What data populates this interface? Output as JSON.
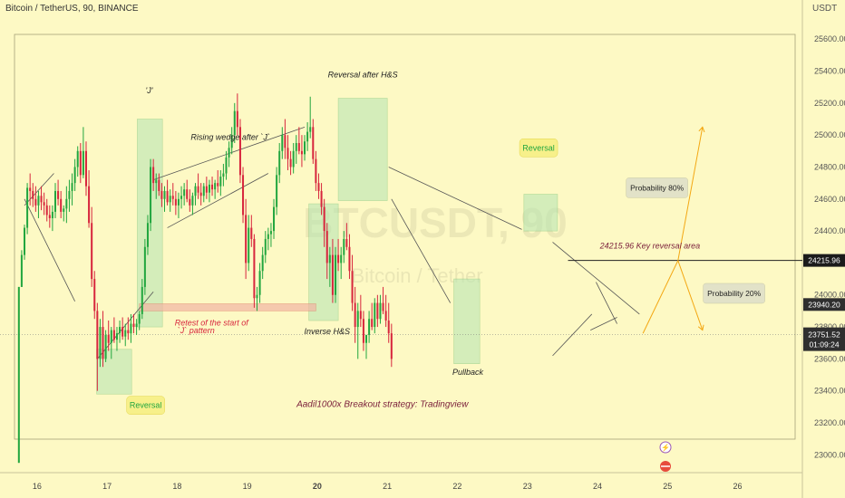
{
  "header": {
    "symbol": "Bitcoin / TetherUS, 90, BINANCE",
    "currency": "USDT"
  },
  "watermark": {
    "ticker": "BTCUSDT, 90",
    "name": "Bitcoin / Tether"
  },
  "colors": {
    "bg": "#fdf9c4",
    "up": "#22a63f",
    "down": "#d7263d",
    "zone": "#b9e6b4",
    "label_box": "#f7f08a",
    "probability_line": "#f3a712",
    "annotation_text": "#7a1e3a"
  },
  "chart_data": {
    "type": "candlestick",
    "title": "",
    "xlabel": "",
    "ylabel": "",
    "x_tick_labels": [
      "16",
      "17",
      "18",
      "19",
      "20",
      "21",
      "22",
      "23",
      "24",
      "25",
      "26"
    ],
    "y_tick_labels": [
      "23000.00",
      "23200.00",
      "23400.00",
      "23600.00",
      "23800.00",
      "24000.00",
      "24200.00",
      "24400.00",
      "24600.00",
      "24800.00",
      "25000.00",
      "25200.00",
      "25400.00",
      "25600.00"
    ],
    "y_ticks": [
      23000,
      23200,
      23400,
      23600,
      23800,
      24000,
      24200,
      24400,
      24600,
      24800,
      25000,
      25200,
      25400,
      25600
    ],
    "ylim": [
      22900,
      25720
    ],
    "xlim": [
      15.6,
      26.9
    ],
    "series": [
      {
        "name": "BTCUSDT",
        "candles": [
          [
            15.74,
            22950,
            24050,
            22950,
            24050
          ],
          [
            15.78,
            24050,
            24280,
            24050,
            24250
          ],
          [
            15.82,
            24250,
            24440,
            24220,
            24420
          ],
          [
            15.86,
            24420,
            24700,
            24380,
            24670
          ],
          [
            15.9,
            24670,
            24760,
            24560,
            24650
          ],
          [
            15.94,
            24650,
            24700,
            24550,
            24600
          ],
          [
            15.98,
            24600,
            24680,
            24520,
            24560
          ],
          [
            16.02,
            24560,
            24650,
            24480,
            24620
          ],
          [
            16.06,
            24620,
            24680,
            24530,
            24580
          ],
          [
            16.1,
            24580,
            24640,
            24500,
            24560
          ],
          [
            16.14,
            24560,
            24600,
            24460,
            24500
          ],
          [
            16.18,
            24500,
            24560,
            24420,
            24480
          ],
          [
            16.22,
            24480,
            24560,
            24400,
            24520
          ],
          [
            16.26,
            24520,
            24700,
            24480,
            24650
          ],
          [
            16.3,
            24650,
            24720,
            24560,
            24600
          ],
          [
            16.34,
            24600,
            24650,
            24480,
            24520
          ],
          [
            16.38,
            24520,
            24560,
            24460,
            24540
          ],
          [
            16.42,
            24540,
            24680,
            24450,
            24600
          ],
          [
            16.46,
            24600,
            24720,
            24520,
            24650
          ],
          [
            16.5,
            24650,
            24760,
            24560,
            24700
          ],
          [
            16.54,
            24700,
            24850,
            24650,
            24800
          ],
          [
            16.58,
            24800,
            24930,
            24740,
            24900
          ],
          [
            16.62,
            24900,
            24950,
            24700,
            24750
          ],
          [
            16.66,
            24750,
            25050,
            24730,
            24900
          ],
          [
            16.7,
            24900,
            24960,
            24620,
            24680
          ],
          [
            16.74,
            24680,
            24780,
            24420,
            24450
          ],
          [
            16.78,
            24450,
            24550,
            24050,
            24100
          ],
          [
            16.82,
            24100,
            24150,
            23850,
            23900
          ],
          [
            16.86,
            23900,
            23950,
            23400,
            23600
          ],
          [
            16.9,
            23600,
            23850,
            23550,
            23800
          ],
          [
            16.94,
            23800,
            23900,
            23550,
            23600
          ],
          [
            16.98,
            23600,
            23780,
            23580,
            23750
          ],
          [
            17.02,
            23750,
            23840,
            23650,
            23700
          ],
          [
            17.06,
            23700,
            23800,
            23600,
            23780
          ],
          [
            17.1,
            23780,
            23860,
            23700,
            23720
          ],
          [
            17.14,
            23720,
            23800,
            23650,
            23760
          ],
          [
            17.18,
            23760,
            23840,
            23700,
            23800
          ],
          [
            17.22,
            23800,
            23860,
            23720,
            23740
          ],
          [
            17.26,
            23740,
            23820,
            23680,
            23780
          ],
          [
            17.3,
            23780,
            23860,
            23720,
            23760
          ],
          [
            17.34,
            23760,
            23880,
            23700,
            23820
          ],
          [
            17.38,
            23820,
            23880,
            23760,
            23800
          ],
          [
            17.42,
            23800,
            23850,
            23750,
            23820
          ],
          [
            17.46,
            23820,
            23900,
            23780,
            23880
          ],
          [
            17.5,
            23880,
            24100,
            23850,
            24050
          ],
          [
            17.54,
            24050,
            24350,
            24000,
            24300
          ],
          [
            17.58,
            24300,
            24500,
            24250,
            24450
          ],
          [
            17.62,
            24450,
            24850,
            24400,
            24800
          ],
          [
            17.66,
            24800,
            24850,
            24650,
            24700
          ],
          [
            17.7,
            24700,
            24760,
            24600,
            24720
          ],
          [
            17.74,
            24720,
            24760,
            24620,
            24650
          ],
          [
            17.78,
            24650,
            24700,
            24550,
            24600
          ],
          [
            17.82,
            24600,
            24680,
            24520,
            24650
          ],
          [
            17.86,
            24650,
            24720,
            24560,
            24580
          ],
          [
            17.9,
            24580,
            24660,
            24520,
            24620
          ],
          [
            17.94,
            24620,
            24700,
            24560,
            24600
          ],
          [
            17.98,
            24600,
            24650,
            24500,
            24560
          ],
          [
            18.02,
            24560,
            24640,
            24480,
            24600
          ],
          [
            18.06,
            24600,
            24680,
            24540,
            24620
          ],
          [
            18.1,
            24620,
            24700,
            24560,
            24660
          ],
          [
            18.14,
            24660,
            24720,
            24580,
            24600
          ],
          [
            18.18,
            24600,
            24660,
            24520,
            24560
          ],
          [
            18.22,
            24560,
            24640,
            24500,
            24620
          ],
          [
            18.26,
            24620,
            24700,
            24560,
            24680
          ],
          [
            18.3,
            24680,
            24760,
            24600,
            24640
          ],
          [
            18.34,
            24640,
            24700,
            24560,
            24620
          ],
          [
            18.38,
            24620,
            24700,
            24580,
            24680
          ],
          [
            18.42,
            24680,
            24740,
            24600,
            24640
          ],
          [
            18.46,
            24640,
            24720,
            24580,
            24690
          ],
          [
            18.5,
            24690,
            24740,
            24620,
            24660
          ],
          [
            18.54,
            24660,
            24720,
            24600,
            24700
          ],
          [
            18.58,
            24700,
            24780,
            24640,
            24680
          ],
          [
            18.62,
            24680,
            24780,
            24620,
            24740
          ],
          [
            18.66,
            24740,
            24820,
            24680,
            24760
          ],
          [
            18.7,
            24760,
            24900,
            24720,
            24860
          ],
          [
            18.74,
            24860,
            24960,
            24800,
            24920
          ],
          [
            18.78,
            24920,
            25050,
            24880,
            25000
          ],
          [
            18.82,
            25000,
            25200,
            24950,
            25150
          ],
          [
            18.86,
            25150,
            25260,
            25000,
            25050
          ],
          [
            18.9,
            25050,
            25100,
            24700,
            24750
          ],
          [
            18.94,
            24750,
            24800,
            24450,
            24500
          ],
          [
            18.98,
            24500,
            24600,
            24100,
            24200
          ],
          [
            19.02,
            24200,
            24500,
            24150,
            24420
          ],
          [
            19.06,
            24420,
            24500,
            24300,
            24350
          ],
          [
            19.1,
            24350,
            24380,
            23920,
            23980
          ],
          [
            19.14,
            23980,
            24050,
            23900,
            24000
          ],
          [
            19.18,
            24000,
            24200,
            23950,
            24150
          ],
          [
            19.22,
            24150,
            24300,
            24100,
            24250
          ],
          [
            19.26,
            24250,
            24400,
            24200,
            24350
          ],
          [
            19.3,
            24350,
            24420,
            24280,
            24380
          ],
          [
            19.34,
            24380,
            24450,
            24300,
            24400
          ],
          [
            19.38,
            24400,
            24600,
            24350,
            24550
          ],
          [
            19.42,
            24550,
            24800,
            24500,
            24750
          ],
          [
            19.46,
            24750,
            24950,
            24700,
            24900
          ],
          [
            19.5,
            24900,
            25050,
            24850,
            25000
          ],
          [
            19.54,
            25000,
            25100,
            24850,
            24920
          ],
          [
            19.58,
            24920,
            25000,
            24780,
            24850
          ],
          [
            19.62,
            24850,
            24900,
            24750,
            24800
          ],
          [
            19.66,
            24800,
            24950,
            24760,
            24900
          ],
          [
            19.7,
            24900,
            25000,
            24820,
            24950
          ],
          [
            19.74,
            24950,
            25050,
            24880,
            24900
          ],
          [
            19.78,
            24900,
            25000,
            24800,
            24880
          ],
          [
            19.82,
            24880,
            25000,
            24840,
            24960
          ],
          [
            19.86,
            24960,
            25080,
            24900,
            25020
          ],
          [
            19.9,
            25020,
            25240,
            24980,
            25050
          ],
          [
            19.94,
            25050,
            25100,
            24820,
            24850
          ],
          [
            19.98,
            24850,
            24900,
            24650,
            24700
          ],
          [
            20.02,
            24700,
            24760,
            24600,
            24650
          ],
          [
            20.06,
            24650,
            24700,
            24500,
            24550
          ],
          [
            20.1,
            24550,
            24600,
            24300,
            24400
          ],
          [
            20.14,
            24400,
            24450,
            24100,
            24200
          ],
          [
            20.18,
            24200,
            24300,
            24050,
            24250
          ],
          [
            20.22,
            24250,
            24350,
            23950,
            24000
          ],
          [
            20.26,
            24000,
            24300,
            23950,
            24250
          ],
          [
            20.3,
            24250,
            24350,
            24150,
            24200
          ],
          [
            20.34,
            24200,
            24300,
            24100,
            24250
          ],
          [
            20.38,
            24250,
            24400,
            24200,
            24350
          ],
          [
            20.42,
            24350,
            24450,
            24280,
            24300
          ],
          [
            20.46,
            24300,
            24380,
            24100,
            24150
          ],
          [
            20.5,
            24150,
            24250,
            23900,
            23950
          ],
          [
            20.54,
            23950,
            24050,
            23700,
            23800
          ],
          [
            20.58,
            23800,
            23950,
            23600,
            23900
          ],
          [
            20.62,
            23900,
            24000,
            23800,
            23850
          ],
          [
            20.66,
            23850,
            23900,
            23650,
            23700
          ],
          [
            20.7,
            23700,
            23750,
            23600,
            23750
          ],
          [
            20.74,
            23750,
            23900,
            23700,
            23850
          ],
          [
            20.78,
            23850,
            23950,
            23780,
            23800
          ],
          [
            20.82,
            23800,
            23980,
            23760,
            23950
          ],
          [
            20.86,
            23950,
            24000,
            23800,
            23850
          ],
          [
            20.9,
            23850,
            24000,
            23820,
            23950
          ],
          [
            20.94,
            23950,
            24050,
            23880,
            23900
          ],
          [
            20.98,
            23900,
            24000,
            23800,
            23840
          ],
          [
            21.02,
            23840,
            23950,
            23700,
            23760
          ],
          [
            21.06,
            23760,
            23820,
            23550,
            23600
          ]
        ]
      },
      {
        "name": "Probability 80% path",
        "values": [
          [
            24.65,
            23760
          ],
          [
            25.15,
            24215
          ],
          [
            25.5,
            25050
          ]
        ]
      },
      {
        "name": "Probability 20% path",
        "values": [
          [
            25.15,
            24215
          ],
          [
            25.5,
            23780
          ]
        ]
      }
    ],
    "annotations": {
      "key_level": "24215.96 Key reversal area",
      "key_level_value": 24215.96,
      "last_price": "23940.20",
      "current_price": "23751.52",
      "countdown": "01:09:24",
      "key_label_box": "24215.96",
      "probability_80": "Probability 80%",
      "probability_20": "Probability 20%",
      "j_label": "'J'",
      "rising_wedge": "Rising wedge after `J`",
      "reversal_after_hs": "Reversal after H&S",
      "inverse_hs": "Inverse H&S",
      "retest_line1": "Retest of the start of",
      "retest_line2": "`J` pattern",
      "reversal": "Reversal",
      "pullback": "Pullback",
      "strategy": "Aadil1000x Breakout strategy: Tradingview"
    }
  }
}
